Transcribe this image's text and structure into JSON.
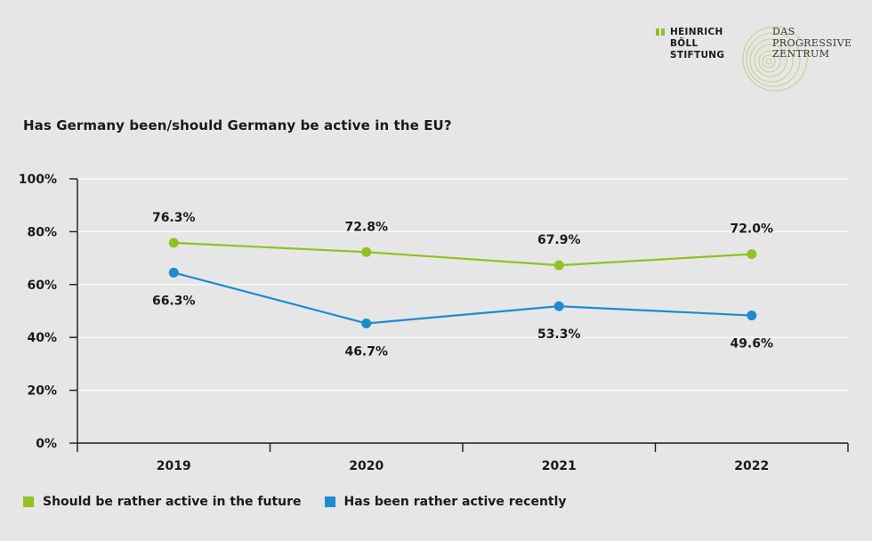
{
  "header": {
    "hbs_logo_lines": [
      "HEINRICH",
      "BÖLL",
      "STIFTUNG"
    ],
    "dpz_logo_lines": [
      "DAS",
      "PROGRESSIVE",
      "ZENTRUM"
    ]
  },
  "colors": {
    "future": "#8fc31f",
    "recent": "#1a8ccf",
    "axis": "#1a1a1a",
    "grid": "#ffffff"
  },
  "legend": {
    "future_label": "Should be rather active in the future",
    "recent_label": "Has been rather active recently"
  },
  "chart_data": {
    "type": "line",
    "title": "Has Germany been/should Germany be active in the EU?",
    "xlabel": "",
    "ylabel": "",
    "categories": [
      "2019",
      "2020",
      "2021",
      "2022"
    ],
    "ylim": [
      0,
      100
    ],
    "yticks": [
      0,
      20,
      40,
      60,
      80,
      100
    ],
    "ytick_labels": [
      "0%",
      "20%",
      "40%",
      "60%",
      "80%",
      "100%"
    ],
    "grid": true,
    "legend_position": "bottom-left",
    "series": [
      {
        "name": "Should be rather active in the future",
        "key": "future",
        "values": [
          76.3,
          72.8,
          67.9,
          72.0
        ],
        "labels": [
          "76.3%",
          "72.8%",
          "67.9%",
          "72.0%"
        ],
        "plotted": [
          75.8,
          72.3,
          67.3,
          71.5
        ]
      },
      {
        "name": "Has been rather active recently",
        "key": "recent",
        "values": [
          66.3,
          46.7,
          53.3,
          49.6
        ],
        "labels": [
          "66.3%",
          "46.7%",
          "53.3%",
          "49.6%"
        ],
        "plotted": [
          64.5,
          45.3,
          51.8,
          48.3
        ]
      }
    ]
  }
}
